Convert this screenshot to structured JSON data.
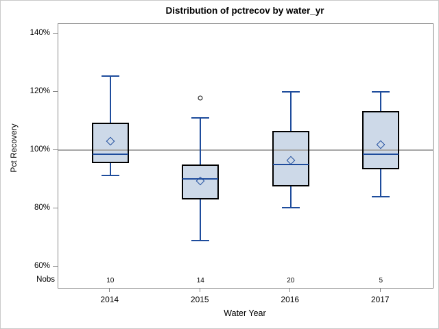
{
  "chart_data": {
    "type": "boxplot",
    "title": "Distribution of pctrecov by water_yr",
    "xlabel": "Water Year",
    "ylabel": "Pct Recovery",
    "nobs_label": "Nobs",
    "ylim": [
      52.7,
      143.3
    ],
    "y_ticks": [
      {
        "value": 140,
        "label": "140%"
      },
      {
        "value": 120,
        "label": "120%"
      },
      {
        "value": 100,
        "label": "100%"
      },
      {
        "value": 80,
        "label": "80%"
      },
      {
        "value": 60,
        "label": "60%"
      }
    ],
    "reference_line": 100,
    "grid": "reference line at 100% only",
    "legend": "none",
    "categories": [
      "2014",
      "2015",
      "2016",
      "2017"
    ],
    "nobs": [
      "10",
      "14",
      "20",
      "5"
    ],
    "series": [
      {
        "category": "2014",
        "n": 10,
        "whisker_low": 91.3,
        "q1": 95.5,
        "median": 98.5,
        "q3": 109.5,
        "whisker_high": 125.5,
        "mean": 103,
        "outliers": []
      },
      {
        "category": "2015",
        "n": 14,
        "whisker_low": 69,
        "q1": 83,
        "median": 90,
        "q3": 95,
        "whisker_high": 111,
        "mean": 89.5,
        "outliers": [
          118
        ]
      },
      {
        "category": "2016",
        "n": 20,
        "whisker_low": 80.3,
        "q1": 87.5,
        "median": 95,
        "q3": 106.5,
        "whisker_high": 120,
        "mean": 96.5,
        "outliers": []
      },
      {
        "category": "2017",
        "n": 5,
        "whisker_low": 84,
        "q1": 93.5,
        "median": 98.5,
        "q3": 113.5,
        "whisker_high": 120,
        "mean": 102,
        "outliers": []
      }
    ]
  },
  "colors": {
    "box_fill": "#CDD9E8",
    "box_border": "#000000",
    "line_blue": "#1E4C9C",
    "ref_line": "#A6A6A6",
    "frame": "#888888",
    "outer_border": "#C9C9C9",
    "outlier": "#111111",
    "text": "#000000"
  }
}
